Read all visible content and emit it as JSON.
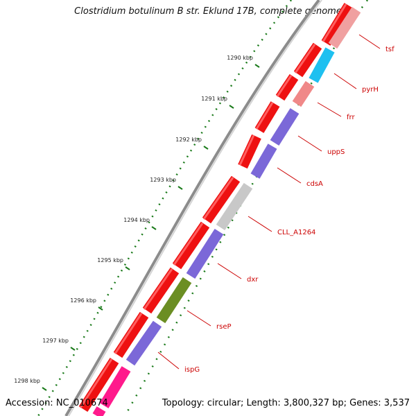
{
  "title": "Clostridium botulinum B str. Eklund 17B, complete genome",
  "footer": {
    "accession": "Accession: NC_010674",
    "summary": "Topology: circular; Length: 3,800,327 bp; Genes: 3,537"
  },
  "ticks": [
    "1290 kbp",
    "1291 kbp",
    "1292 kbp",
    "1293 kbp",
    "1294 kbp",
    "1295 kbp",
    "1296 kbp",
    "1297 kbp",
    "1298 kbp"
  ],
  "genes": [
    {
      "label": "tsf",
      "color": "#f0a0a0"
    },
    {
      "label": "pyrH",
      "color": "#1ec0f0"
    },
    {
      "label": "frr",
      "color": "#f08888"
    },
    {
      "label": "uppS",
      "color": "#7b68d8"
    },
    {
      "label": "cdsA",
      "color": "#7b68d8"
    },
    {
      "label": "CLL_A1264",
      "color": "#c8c8c8"
    },
    {
      "label": "dxr",
      "color": "#7b68d8"
    },
    {
      "label": "rseP",
      "color": "#6b8e23"
    },
    {
      "label": "ispG",
      "color": "#7b68d8"
    }
  ],
  "colors": {
    "cds": "#ee1111",
    "backbone": "#888888",
    "tick_dots": "#1a7a1a",
    "label": "#cc0000"
  }
}
